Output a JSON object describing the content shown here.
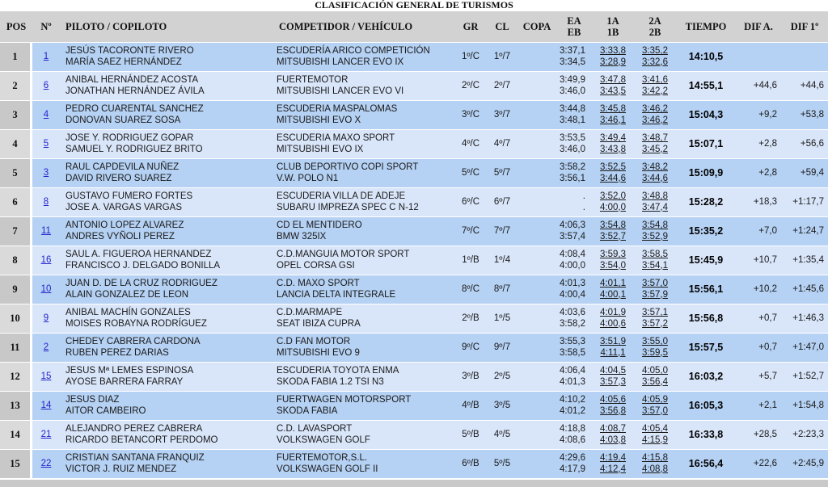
{
  "title": "CLASIFICACIÓN GENERAL DE TURISMOS",
  "colors": {
    "header_bg": "#d2d2d2",
    "row_dark": "#b5d1f3",
    "row_light": "#d9e6fa",
    "pos_dark": "#c8c8c8",
    "pos_light": "#dadada",
    "number_link": "#2424cd"
  },
  "columns": {
    "pos": "POS",
    "num": "Nº",
    "piloto": "PILOTO / COPILOTO",
    "competidor": "COMPETIDOR / VEHÍCULO",
    "gr": "GR",
    "cl": "CL",
    "copa": "COPA",
    "ea": "EA",
    "eb": "EB",
    "a1": "1A",
    "b1": "1B",
    "a2": "2A",
    "b2": "2B",
    "tiempo": "TIEMPO",
    "dif_a": "DIF A.",
    "dif_1": "DIF 1º"
  },
  "rows": [
    {
      "pos": "1",
      "num": "1",
      "driver": "JESÚS TACORONTE RIVERO",
      "codriver": "MARÍA SAEZ HERNÁNDEZ",
      "competitor": "ESCUDERÍA ARICO COMPETICIÓN",
      "vehicle": "MITSUBISHI LANCER EVO IX",
      "gr": "1º/C",
      "cl": "1º/7",
      "copa": "",
      "ea": "3:37,1",
      "eb": "3:34,5",
      "t1a": "3:33,8",
      "t1b": "3:28,9",
      "t2a": "3:35,2",
      "t2b": "3:32,6",
      "tiempo": "14:10,5",
      "dif_a": "",
      "dif_1": ""
    },
    {
      "pos": "2",
      "num": "6",
      "driver": "ANIBAL HERNÁNDEZ ACOSTA",
      "codriver": "JONATHAN HERNÁNDEZ ÁVILA",
      "competitor": "FUERTEMOTOR",
      "vehicle": "MITSUBISHI LANCER EVO VI",
      "gr": "2º/C",
      "cl": "2º/7",
      "copa": "",
      "ea": "3:49,9",
      "eb": "3:46,0",
      "t1a": "3:47,8",
      "t1b": "3:43,5",
      "t2a": "3:41,6",
      "t2b": "3:42,2",
      "tiempo": "14:55,1",
      "dif_a": "+44,6",
      "dif_1": "+44,6"
    },
    {
      "pos": "3",
      "num": "4",
      "driver": "PEDRO CUARENTAL SANCHEZ",
      "codriver": "DONOVAN SUAREZ SOSA",
      "competitor": "ESCUDERIA MASPALOMAS",
      "vehicle": "MITSUBISHI EVO X",
      "gr": "3º/C",
      "cl": "3º/7",
      "copa": "",
      "ea": "3:44,8",
      "eb": "3:48,1",
      "t1a": "3:45,8",
      "t1b": "3:46,1",
      "t2a": "3:46,2",
      "t2b": "3:46,2",
      "tiempo": "15:04,3",
      "dif_a": "+9,2",
      "dif_1": "+53,8"
    },
    {
      "pos": "4",
      "num": "5",
      "driver": "JOSE Y. RODRIGUEZ GOPAR",
      "codriver": "SAMUEL Y. RODRIGUEZ BRITO",
      "competitor": "ESCUDERIA MAXO SPORT",
      "vehicle": "MITSUBISHI EVO IX",
      "gr": "4º/C",
      "cl": "4º/7",
      "copa": "",
      "ea": "3:53,5",
      "eb": "3:46,0",
      "t1a": "3:49,4",
      "t1b": "3:43,8",
      "t2a": "3:48,7",
      "t2b": "3:45,2",
      "tiempo": "15:07,1",
      "dif_a": "+2,8",
      "dif_1": "+56,6"
    },
    {
      "pos": "5",
      "num": "3",
      "driver": "RAUL CAPDEVILA NUÑEZ",
      "codriver": "DAVID RIVERO SUAREZ",
      "competitor": "CLUB DEPORTIVO COPI SPORT",
      "vehicle": "V.W. POLO N1",
      "gr": "5º/C",
      "cl": "5º/7",
      "copa": "",
      "ea": "3:58,2",
      "eb": "3:56,1",
      "t1a": "3:52,5",
      "t1b": "3:44,6",
      "t2a": "3:48,2",
      "t2b": "3:44,6",
      "tiempo": "15:09,9",
      "dif_a": "+2,8",
      "dif_1": "+59,4"
    },
    {
      "pos": "6",
      "num": "8",
      "driver": "GUSTAVO FUMERO FORTES",
      "codriver": "JOSE A. VARGAS VARGAS",
      "competitor": "ESCUDERIA VILLA DE ADEJE",
      "vehicle": "SUBARU IMPREZA SPEC C N-12",
      "gr": "6º/C",
      "cl": "6º/7",
      "copa": "",
      "ea": ".",
      "eb": ".",
      "t1a": "3:52,0",
      "t1b": "4:00,0",
      "t2a": "3:48,8",
      "t2b": "3:47,4",
      "tiempo": "15:28,2",
      "dif_a": "+18,3",
      "dif_1": "+1:17,7"
    },
    {
      "pos": "7",
      "num": "11",
      "driver": "ANTONIO LOPEZ ALVAREZ",
      "codriver": "ANDRES VYÑOLI PEREZ",
      "competitor": "CD EL MENTIDERO",
      "vehicle": "BMW 325IX",
      "gr": "7º/C",
      "cl": "7º/7",
      "copa": "",
      "ea": "4:06,3",
      "eb": "3:57,4",
      "t1a": "3:54,8",
      "t1b": "3:52,7",
      "t2a": "3:54,8",
      "t2b": "3:52,9",
      "tiempo": "15:35,2",
      "dif_a": "+7,0",
      "dif_1": "+1:24,7"
    },
    {
      "pos": "8",
      "num": "16",
      "driver": "SAUL A. FIGUEROA HERNANDEZ",
      "codriver": "FRANCISCO J. DELGADO BONILLA",
      "competitor": "C.D.MANGUIA MOTOR SPORT",
      "vehicle": "OPEL CORSA GSI",
      "gr": "1º/B",
      "cl": "1º/4",
      "copa": "",
      "ea": "4:08,4",
      "eb": "4:00,0",
      "t1a": "3:59,3",
      "t1b": "3:54,0",
      "t2a": "3:58,5",
      "t2b": "3:54,1",
      "tiempo": "15:45,9",
      "dif_a": "+10,7",
      "dif_1": "+1:35,4"
    },
    {
      "pos": "9",
      "num": "10",
      "driver": "JUAN D. DE LA CRUZ RODRIGUEZ",
      "codriver": "ALAIN GONZALEZ DE LEON",
      "competitor": "C.D. MAXO SPORT",
      "vehicle": "LANCIA DELTA INTEGRALE",
      "gr": "8º/C",
      "cl": "8º/7",
      "copa": "",
      "ea": "4:01,3",
      "eb": "4:00,4",
      "t1a": "4:01,1",
      "t1b": "4:00,1",
      "t2a": "3:57,0",
      "t2b": "3:57,9",
      "tiempo": "15:56,1",
      "dif_a": "+10,2",
      "dif_1": "+1:45,6"
    },
    {
      "pos": "10",
      "num": "9",
      "driver": "ANIBAL MACHÍN GONZALES",
      "codriver": "MOISES ROBAYNA RODRÍGUEZ",
      "competitor": "C.D.MARMAPE",
      "vehicle": "SEAT IBIZA CUPRA",
      "gr": "2º/B",
      "cl": "1º/5",
      "copa": "",
      "ea": "4:03,6",
      "eb": "3:58,2",
      "t1a": "4:01,9",
      "t1b": "4:00,6",
      "t2a": "3:57,1",
      "t2b": "3:57,2",
      "tiempo": "15:56,8",
      "dif_a": "+0,7",
      "dif_1": "+1:46,3"
    },
    {
      "pos": "11",
      "num": "2",
      "driver": "CHEDEY CABRERA CARDONA",
      "codriver": "RUBEN PEREZ DARIAS",
      "competitor": "C.D FAN MOTOR",
      "vehicle": "MITSUBISHI EVO 9",
      "gr": "9º/C",
      "cl": "9º/7",
      "copa": "",
      "ea": "3:55,3",
      "eb": "3:58,5",
      "t1a": "3:51,9",
      "t1b": "4:11,1",
      "t2a": "3:55,0",
      "t2b": "3:59,5",
      "tiempo": "15:57,5",
      "dif_a": "+0,7",
      "dif_1": "+1:47,0"
    },
    {
      "pos": "12",
      "num": "15",
      "driver": "JESUS Mª LEMES ESPINOSA",
      "codriver": "AYOSE BARRERA FARRAY",
      "competitor": "ESCUDERIA TOYOTA ENMA",
      "vehicle": "SKODA FABIA 1.2 TSI N3",
      "gr": "3º/B",
      "cl": "2º/5",
      "copa": "",
      "ea": "4:06,4",
      "eb": "4:01,3",
      "t1a": "4:04,5",
      "t1b": "3:57,3",
      "t2a": "4:05,0",
      "t2b": "3:56,4",
      "tiempo": "16:03,2",
      "dif_a": "+5,7",
      "dif_1": "+1:52,7"
    },
    {
      "pos": "13",
      "num": "14",
      "driver": "JESUS DIAZ",
      "codriver": "AITOR CAMBEIRO",
      "competitor": "FUERTWAGEN MOTORSPORT",
      "vehicle": "SKODA FABIA",
      "gr": "4º/B",
      "cl": "3º/5",
      "copa": "",
      "ea": "4:10,2",
      "eb": "4:01,2",
      "t1a": "4:05,6",
      "t1b": "3:56,8",
      "t2a": "4:05,9",
      "t2b": "3:57,0",
      "tiempo": "16:05,3",
      "dif_a": "+2,1",
      "dif_1": "+1:54,8"
    },
    {
      "pos": "14",
      "num": "21",
      "driver": "ALEJANDRO PEREZ CABRERA",
      "codriver": "RICARDO BETANCORT PERDOMO",
      "competitor": "C.D. LAVASPORT",
      "vehicle": "VOLKSWAGEN GOLF",
      "gr": "5º/B",
      "cl": "4º/5",
      "copa": "",
      "ea": "4:18,8",
      "eb": "4:08,6",
      "t1a": "4:08,7",
      "t1b": "4:03,8",
      "t2a": "4:05,4",
      "t2b": "4:15,9",
      "tiempo": "16:33,8",
      "dif_a": "+28,5",
      "dif_1": "+2:23,3"
    },
    {
      "pos": "15",
      "num": "22",
      "driver": "CRISTIAN SANTANA FRANQUIZ",
      "codriver": "VICTOR J. RUIZ MENDEZ",
      "competitor": "FUERTEMOTOR,S.L.",
      "vehicle": "VOLKSWAGEN GOLF II",
      "gr": "6º/B",
      "cl": "5º/5",
      "copa": "",
      "ea": "4:29,6",
      "eb": "4:17,9",
      "t1a": "4:19,4",
      "t1b": "4:12,4",
      "t2a": "4:15,8",
      "t2b": "4:08,8",
      "tiempo": "16:56,4",
      "dif_a": "+22,6",
      "dif_1": "+2:45,9"
    }
  ]
}
